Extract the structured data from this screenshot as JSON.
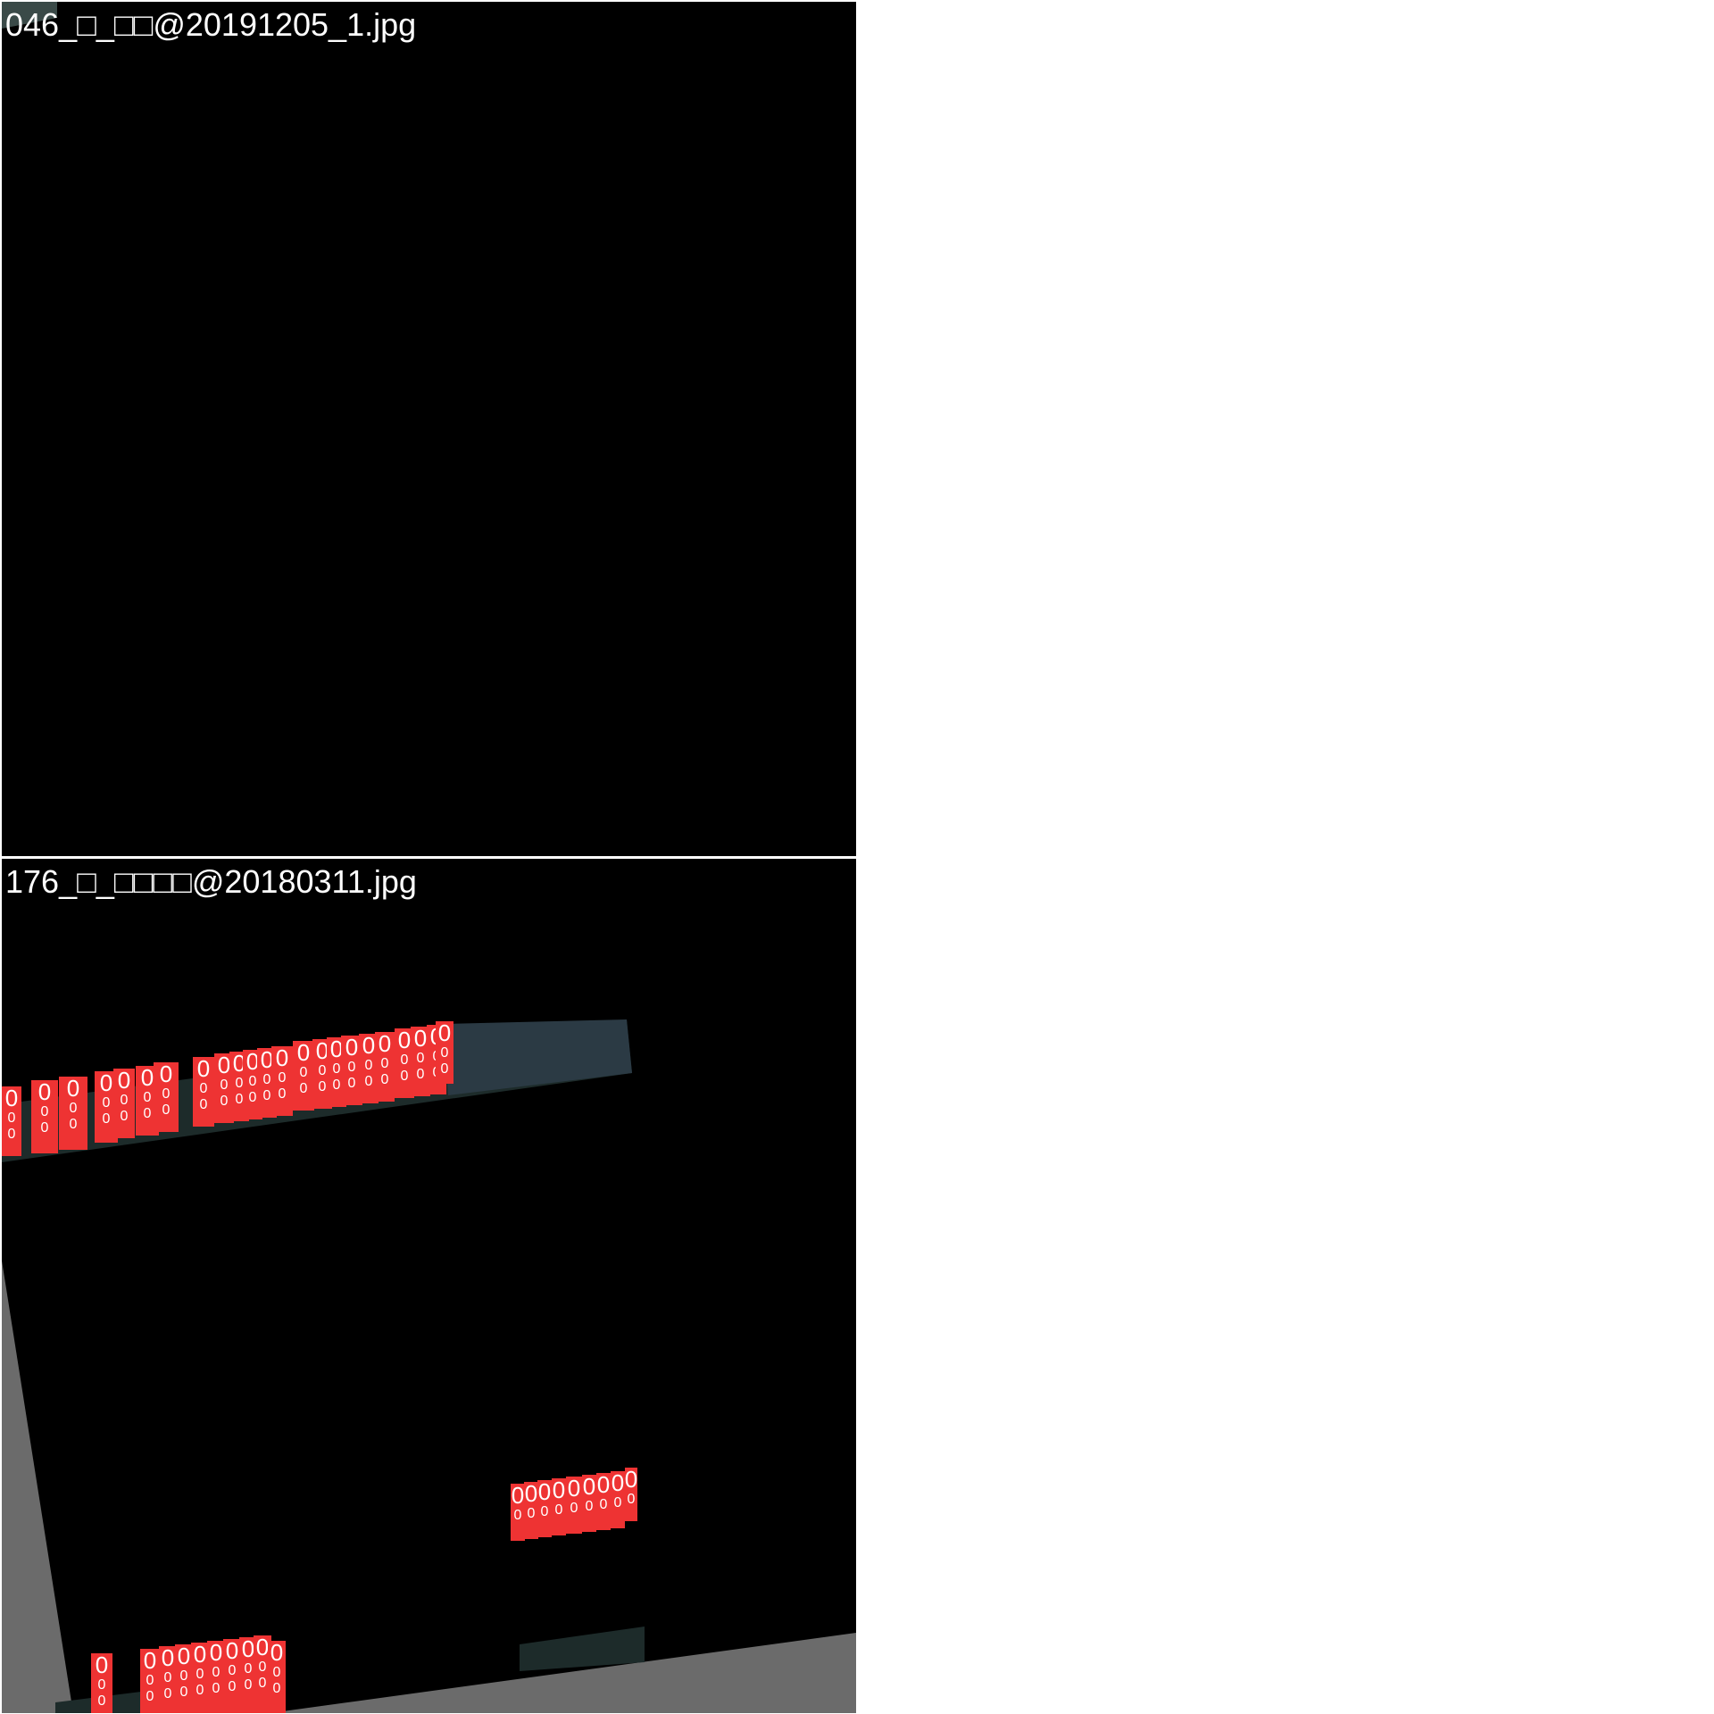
{
  "panels": [
    {
      "filename": "046_□_□□@20191205_1.jpg",
      "detections": []
    },
    {
      "filename": "176_□_□□□□@20180311.jpg",
      "detection_label": "0",
      "box_color": "#ee3333",
      "label_color": "#ffffff"
    }
  ],
  "colors": {
    "background": "#ffffff",
    "panel_background": "#000000",
    "border_fill": "#6b6b6b",
    "imagery_strip": "#2b3a44",
    "imagery_dark": "#1d2b2a"
  }
}
